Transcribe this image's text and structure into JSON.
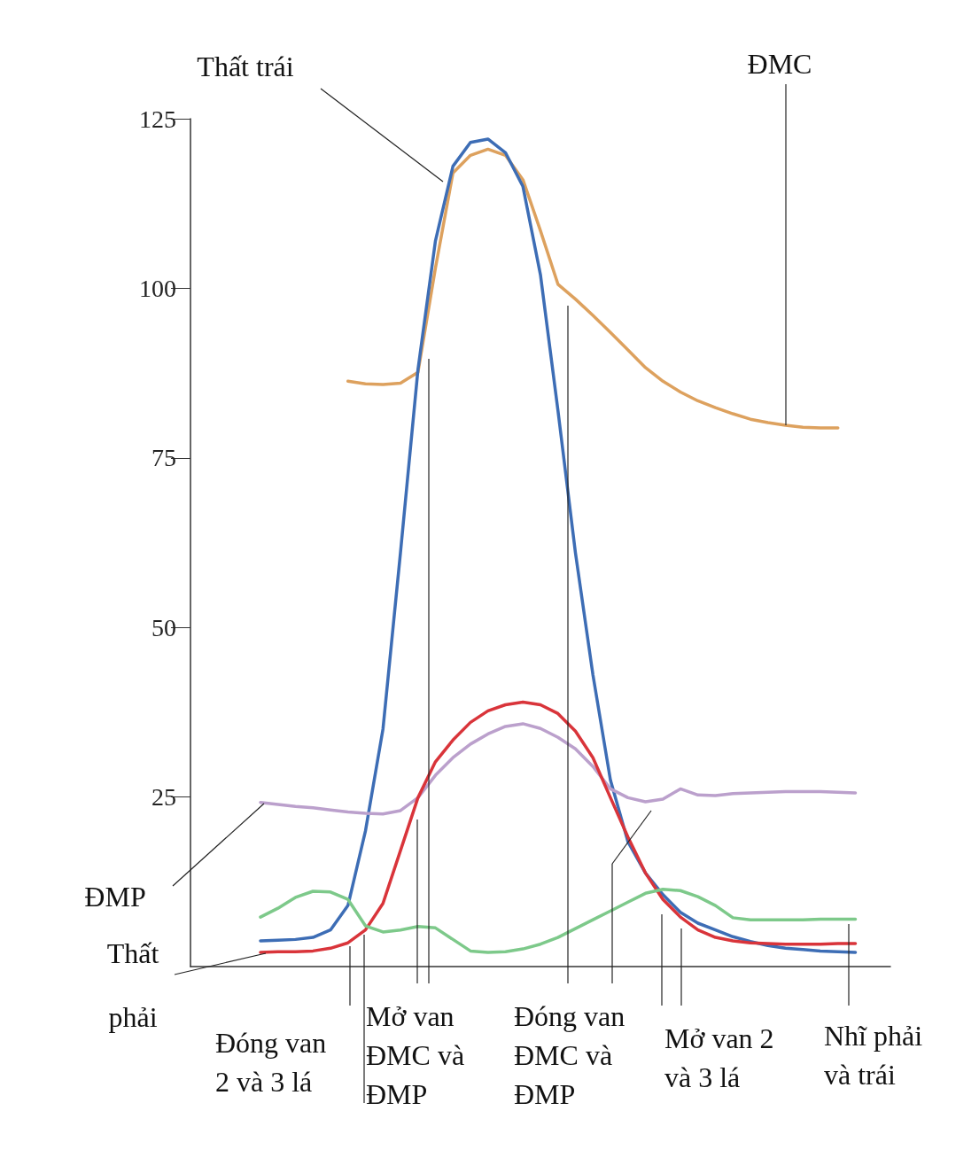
{
  "chart_data": {
    "type": "line",
    "categories": [
      null,
      null,
      null,
      null,
      null,
      null,
      null,
      null,
      null,
      null,
      null,
      null,
      null,
      null,
      null,
      null,
      null,
      null,
      null,
      null,
      null,
      null,
      null,
      null,
      null,
      null,
      null,
      null,
      null,
      null,
      null,
      null,
      null,
      null,
      null,
      null,
      null,
      null,
      null,
      null,
      null
    ],
    "series": [
      {
        "name": "ĐMC",
        "color": "#dda15e",
        "values": [
          null,
          null,
          null,
          null,
          null,
          null,
          null,
          null,
          null,
          86.3,
          85.9,
          85.8,
          86,
          87.6,
          103,
          117,
          119.6,
          120.5,
          119.6,
          116,
          108.5,
          100.6,
          98.4,
          96,
          93.5,
          90.9,
          88.3,
          86.3,
          84.7,
          83.4,
          82.4,
          81.5,
          80.7,
          80.2,
          79.8,
          79.5,
          79.4,
          79.4,
          null,
          null,
          null
        ]
      },
      {
        "name": "Thất trái",
        "color": "#3d6db5",
        "values": [
          null,
          null,
          null,
          null,
          3.8,
          3.9,
          4,
          4.3,
          5.4,
          9,
          20,
          35,
          61,
          88,
          107,
          118,
          121.5,
          122,
          120,
          115,
          102,
          82,
          61,
          43,
          27.5,
          18.4,
          13.8,
          10.6,
          8,
          6.4,
          5.4,
          4.4,
          3.7,
          3.1,
          2.7,
          2.5,
          2.3,
          2.2,
          2.1,
          null,
          null
        ]
      },
      {
        "name": "ĐMP",
        "color": "#bba0cc",
        "values": [
          null,
          null,
          null,
          null,
          24.2,
          23.9,
          23.6,
          23.4,
          23.1,
          22.8,
          22.6,
          22.5,
          23,
          24.9,
          28.2,
          30.8,
          32.8,
          34.3,
          35.4,
          35.8,
          35.1,
          33.8,
          32.1,
          29.5,
          26.2,
          24.9,
          24.3,
          24.7,
          26.2,
          25.3,
          25.2,
          25.5,
          25.6,
          25.7,
          25.8,
          25.8,
          25.8,
          25.7,
          25.6,
          null,
          null
        ]
      },
      {
        "name": "Thất phải",
        "color": "#d9343a",
        "values": [
          null,
          null,
          null,
          null,
          2.1,
          2.2,
          2.2,
          2.3,
          2.7,
          3.5,
          5.4,
          9.3,
          17.1,
          24.9,
          30.2,
          33.4,
          36,
          37.7,
          38.6,
          39,
          38.6,
          37.3,
          34.7,
          30.8,
          24.9,
          19.1,
          13.8,
          9.9,
          7.3,
          5.4,
          4.3,
          3.8,
          3.5,
          3.4,
          3.3,
          3.3,
          3.3,
          3.4,
          3.4,
          null,
          null
        ]
      },
      {
        "color": "#7dc98a",
        "values": [
          null,
          null,
          null,
          null,
          7.3,
          8.6,
          10.2,
          11.1,
          11,
          9.9,
          6,
          5.1,
          5.4,
          5.9,
          5.7,
          4,
          2.3,
          2.1,
          2.2,
          2.6,
          3.3,
          4.3,
          5.6,
          6.9,
          8.2,
          9.5,
          10.8,
          11.4,
          11.2,
          10.3,
          9,
          7.2,
          6.9,
          6.9,
          6.9,
          6.9,
          7,
          7,
          7,
          null,
          null
        ]
      }
    ],
    "ylim": [
      0,
      125
    ],
    "yticks": [
      25,
      50,
      75,
      100,
      125
    ],
    "tick_labels": "y",
    "grid": false,
    "legend": false,
    "marker": "none",
    "line_style": "solid",
    "annotations": [
      "Đóng van 2 và 3 lá",
      "Mở van ĐMC và ĐMP",
      "Đóng van ĐMC và ĐMP",
      "Mở van 2 và 3 lá",
      "Nhĩ phải và trái"
    ]
  }
}
